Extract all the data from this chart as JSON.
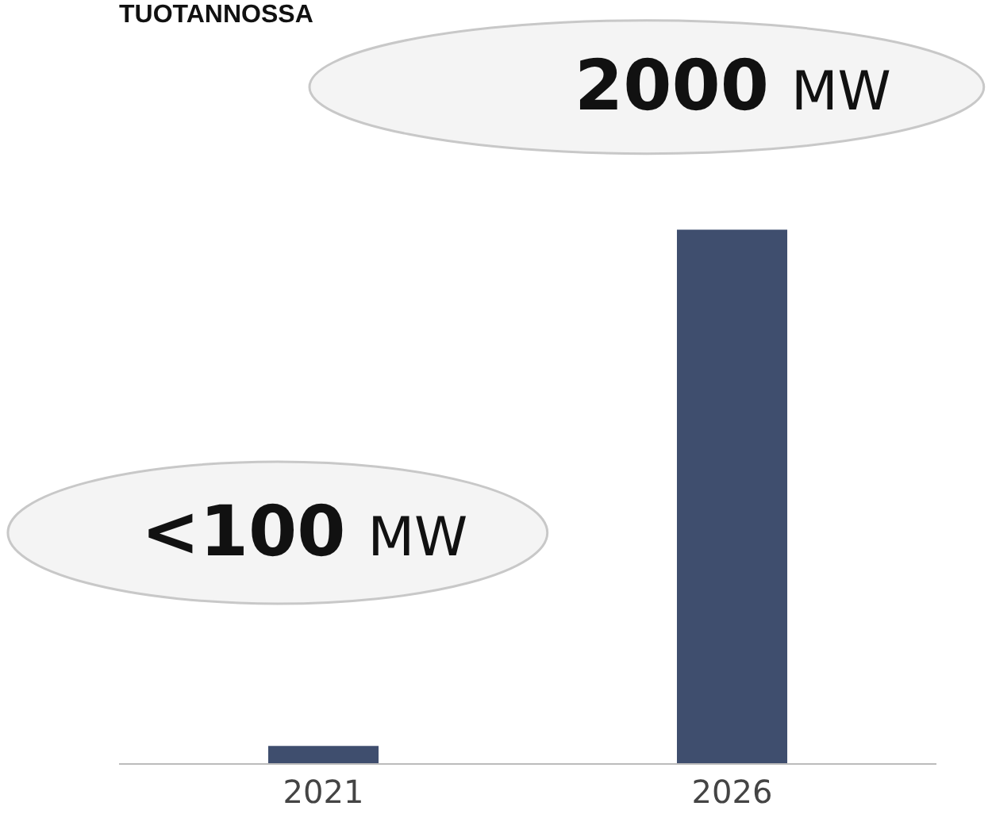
{
  "chart_data": {
    "type": "bar",
    "title": "TUOTANNOSSA",
    "categories": [
      "2021",
      "2026"
    ],
    "values": [
      65,
      2000
    ],
    "color": "#3f4e6e",
    "value_labels": [
      "<100 MW",
      "2000 MW"
    ],
    "legend": false
  }
}
